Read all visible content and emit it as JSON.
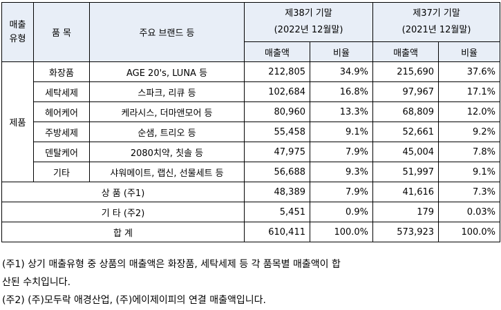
{
  "header": {
    "sales_type": "매출\n유형",
    "item": "품 목",
    "brands": "주요 브랜드 등",
    "period_38": "제38기 기말\n(2022년 12월말)",
    "period_37": "제37기 기말\n(2021년 12월말)",
    "amount": "매출액",
    "ratio": "비율"
  },
  "group_label": "제품",
  "product_rows": [
    {
      "item": "화장품",
      "brands": "AGE 20's, LUNA 등",
      "amt38": "212,805",
      "ratio38": "34.9%",
      "amt37": "215,690",
      "ratio37": "37.6%"
    },
    {
      "item": "세탁세제",
      "brands": "스파크, 리큐 등",
      "amt38": "102,684",
      "ratio38": "16.8%",
      "amt37": "97,967",
      "ratio37": "17.1%"
    },
    {
      "item": "헤어케어",
      "brands": "케라시스, 더마앤모어 등",
      "amt38": "80,960",
      "ratio38": "13.3%",
      "amt37": "68,809",
      "ratio37": "12.0%"
    },
    {
      "item": "주방세제",
      "brands": "순샘, 트리오 등",
      "amt38": "55,458",
      "ratio38": "9.1%",
      "amt37": "52,661",
      "ratio37": "9.2%"
    },
    {
      "item": "덴탈케어",
      "brands": "2080치약, 칫솔 등",
      "amt38": "47,975",
      "ratio38": "7.9%",
      "amt37": "45,004",
      "ratio37": "7.8%"
    },
    {
      "item": "기타",
      "brands": "샤워메이트, 랩신, 선물세트 등",
      "amt38": "56,688",
      "ratio38": "9.3%",
      "amt37": "51,997",
      "ratio37": "9.1%"
    }
  ],
  "merchandise_row": {
    "label": "상 품 (주1)",
    "amt38": "48,389",
    "ratio38": "7.9%",
    "amt37": "41,616",
    "ratio37": "7.3%"
  },
  "other_row": {
    "label": "기 타 (주2)",
    "amt38": "5,451",
    "ratio38": "0.9%",
    "amt37": "179",
    "ratio37": "0.03%"
  },
  "total_row": {
    "label": "합 계",
    "amt38": "610,411",
    "ratio38": "100.0%",
    "amt37": "573,923",
    "ratio37": "100.0%"
  },
  "notes": [
    "(주1) 상기 매출유형 중 상품의 매출액은 화장품, 세탁세제 등 각 품목별 매출액이 합",
    "산된 수치입니다.",
    "(주2) (주)모두락 애경산업, (주)에이제이피의 연결 매출액입니다."
  ]
}
